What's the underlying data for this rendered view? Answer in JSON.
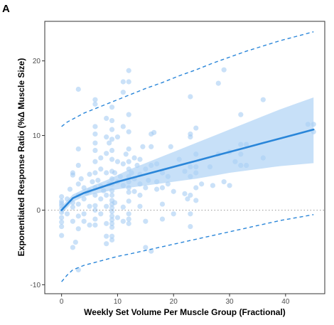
{
  "panel_label": "A",
  "colors": {
    "points": "#9ec9f2",
    "fit_line": "#2a86d9",
    "ci_band": "#a9cff5",
    "prediction_interval": "#2a86d9",
    "zero_line": "#9a9a9a",
    "panel_border": "#333333"
  },
  "chart_data": {
    "type": "scatter",
    "title": "",
    "xlabel": "Weekly Set Volume Per Muscle Group (Fractional)",
    "ylabel": "Exponentiated Response Ratio (%Δ Muscle Size)",
    "xlim": [
      -3,
      47
    ],
    "ylim": [
      -11.2,
      25.3
    ],
    "x_ticks": [
      0,
      10,
      20,
      30,
      40
    ],
    "y_ticks": [
      -10,
      0,
      10,
      20
    ],
    "grid": false,
    "reference_line": {
      "y": 0,
      "style": "dotted"
    },
    "fit": {
      "x": [
        0,
        2,
        4,
        6,
        8,
        10,
        12,
        15,
        18,
        21,
        24,
        27,
        30,
        33,
        36,
        39,
        42,
        45
      ],
      "y": [
        0,
        1.6,
        2.3,
        2.8,
        3.3,
        3.8,
        4.2,
        4.8,
        5.4,
        6.0,
        6.6,
        7.2,
        7.8,
        8.4,
        9.0,
        9.6,
        10.2,
        10.8
      ],
      "lower": [
        -0.5,
        1.1,
        1.8,
        2.2,
        2.5,
        2.8,
        3.0,
        3.3,
        3.6,
        3.9,
        4.2,
        4.6,
        5.0,
        5.3,
        5.6,
        5.9,
        6.1,
        6.3
      ],
      "upper": [
        0.5,
        2.1,
        2.8,
        3.4,
        4.0,
        4.7,
        5.4,
        6.3,
        7.2,
        8.1,
        9.0,
        9.9,
        10.8,
        11.7,
        12.6,
        13.5,
        14.3,
        15.1
      ]
    },
    "prediction_interval": {
      "x": [
        0,
        1,
        2,
        4,
        6,
        8,
        10,
        12,
        15,
        18,
        21,
        24,
        27,
        30,
        33,
        36,
        39,
        42,
        45
      ],
      "lower": [
        -9.6,
        -8.7,
        -8.0,
        -7.4,
        -7.0,
        -6.6,
        -6.2,
        -5.9,
        -5.4,
        -4.9,
        -4.4,
        -3.9,
        -3.4,
        -2.9,
        -2.4,
        -1.9,
        -1.4,
        -1.0,
        -0.6
      ],
      "upper": [
        11.2,
        11.8,
        12.2,
        13.0,
        13.6,
        14.2,
        14.8,
        15.4,
        16.3,
        17.1,
        18.0,
        18.8,
        19.7,
        20.5,
        21.3,
        22.0,
        22.7,
        23.3,
        23.9
      ]
    },
    "series": [
      {
        "points": [
          {
            "x": 0,
            "y": 1.8
          },
          {
            "x": 0,
            "y": 1.2
          },
          {
            "x": 0,
            "y": 0.6
          },
          {
            "x": 0,
            "y": 0.2
          },
          {
            "x": 0,
            "y": -0.3
          },
          {
            "x": 0,
            "y": -1.0
          },
          {
            "x": 0,
            "y": -1.6
          },
          {
            "x": 0,
            "y": -2.2
          },
          {
            "x": 0,
            "y": -3.4
          },
          {
            "x": 0,
            "y": 0.9
          },
          {
            "x": 1,
            "y": -0.5
          },
          {
            "x": 1,
            "y": 1.5
          },
          {
            "x": 1.5,
            "y": 2.8
          },
          {
            "x": 2,
            "y": 4.7
          },
          {
            "x": 2,
            "y": 5.0
          },
          {
            "x": 2,
            "y": 1.0
          },
          {
            "x": 2,
            "y": 0.4
          },
          {
            "x": 2,
            "y": -1.5
          },
          {
            "x": 2,
            "y": -5.0
          },
          {
            "x": 2.5,
            "y": -4.3
          },
          {
            "x": 3,
            "y": 16.2
          },
          {
            "x": 3,
            "y": 8.2
          },
          {
            "x": 3,
            "y": 6.0
          },
          {
            "x": 3,
            "y": 3.5
          },
          {
            "x": 3,
            "y": 2.0
          },
          {
            "x": 3,
            "y": 0.8
          },
          {
            "x": 3,
            "y": -0.8
          },
          {
            "x": 3,
            "y": -2.5
          },
          {
            "x": 3,
            "y": -8.0
          },
          {
            "x": 3.5,
            "y": 4.2
          },
          {
            "x": 4,
            "y": 3.0
          },
          {
            "x": 4,
            "y": 1.5
          },
          {
            "x": 4,
            "y": -0.5
          },
          {
            "x": 4,
            "y": -1.5
          },
          {
            "x": 4.5,
            "y": 2.3
          },
          {
            "x": 5,
            "y": 4.8
          },
          {
            "x": 5,
            "y": 2.6
          },
          {
            "x": 5,
            "y": 0.5
          },
          {
            "x": 5,
            "y": -2.0
          },
          {
            "x": 5.5,
            "y": 3.8
          },
          {
            "x": 6,
            "y": 14.8
          },
          {
            "x": 6,
            "y": 14.2
          },
          {
            "x": 6,
            "y": 11.2
          },
          {
            "x": 6,
            "y": 10.2
          },
          {
            "x": 6,
            "y": 9.0
          },
          {
            "x": 6,
            "y": 8.0
          },
          {
            "x": 6,
            "y": 6.5
          },
          {
            "x": 6,
            "y": 5.0
          },
          {
            "x": 6,
            "y": 3.0
          },
          {
            "x": 6,
            "y": 2.0
          },
          {
            "x": 6,
            "y": 0.6
          },
          {
            "x": 6,
            "y": 0.0
          },
          {
            "x": 6,
            "y": -1.2
          },
          {
            "x": 6,
            "y": -2.0
          },
          {
            "x": 6.5,
            "y": 4.0
          },
          {
            "x": 7,
            "y": 7.0
          },
          {
            "x": 7,
            "y": 5.5
          },
          {
            "x": 7,
            "y": 3.2
          },
          {
            "x": 7,
            "y": 1.5
          },
          {
            "x": 7,
            "y": -0.5
          },
          {
            "x": 7.5,
            "y": 2.6
          },
          {
            "x": 8,
            "y": 12.3
          },
          {
            "x": 8,
            "y": 9.8
          },
          {
            "x": 8,
            "y": 7.6
          },
          {
            "x": 8,
            "y": 5.0
          },
          {
            "x": 8,
            "y": 2.0
          },
          {
            "x": 8,
            "y": 0.5
          },
          {
            "x": 8,
            "y": -1.8
          },
          {
            "x": 8,
            "y": -3.5
          },
          {
            "x": 8,
            "y": -4.5
          },
          {
            "x": 8.5,
            "y": 9.0
          },
          {
            "x": 8.5,
            "y": 3.5
          },
          {
            "x": 9,
            "y": 13.8
          },
          {
            "x": 9,
            "y": 12.0
          },
          {
            "x": 9,
            "y": 10.8
          },
          {
            "x": 9,
            "y": 9.5
          },
          {
            "x": 9,
            "y": 8.0
          },
          {
            "x": 9,
            "y": 6.8
          },
          {
            "x": 9,
            "y": 5.2
          },
          {
            "x": 9,
            "y": 4.2
          },
          {
            "x": 9,
            "y": 3.5
          },
          {
            "x": 9,
            "y": 2.6
          },
          {
            "x": 9,
            "y": 2.0
          },
          {
            "x": 9,
            "y": 1.3
          },
          {
            "x": 9,
            "y": 0.8
          },
          {
            "x": 9,
            "y": 0.3
          },
          {
            "x": 9,
            "y": -0.2
          },
          {
            "x": 9,
            "y": -0.8
          },
          {
            "x": 9,
            "y": -1.3
          },
          {
            "x": 9,
            "y": -1.8
          },
          {
            "x": 9,
            "y": -2.3
          },
          {
            "x": 9,
            "y": -3.5
          },
          {
            "x": 9,
            "y": -4.0
          },
          {
            "x": 9.5,
            "y": 5.0
          },
          {
            "x": 9.5,
            "y": 1.0
          },
          {
            "x": 10,
            "y": 9.8
          },
          {
            "x": 10,
            "y": 6.5
          },
          {
            "x": 10,
            "y": 3.8
          },
          {
            "x": 10,
            "y": -1.0
          },
          {
            "x": 10.5,
            "y": 4.5
          },
          {
            "x": 11,
            "y": 17.2
          },
          {
            "x": 11,
            "y": 15.8
          },
          {
            "x": 11,
            "y": 11.2
          },
          {
            "x": 11,
            "y": 6.2
          },
          {
            "x": 11,
            "y": 3.3
          },
          {
            "x": 11,
            "y": 0.4
          },
          {
            "x": 11,
            "y": -1.5
          },
          {
            "x": 11.5,
            "y": 7.5
          },
          {
            "x": 12,
            "y": 18.7
          },
          {
            "x": 12,
            "y": 17.2
          },
          {
            "x": 12,
            "y": 12.8
          },
          {
            "x": 12,
            "y": 10.5
          },
          {
            "x": 12,
            "y": 8.2
          },
          {
            "x": 12,
            "y": 6.5
          },
          {
            "x": 12,
            "y": 5.5
          },
          {
            "x": 12,
            "y": 4.5
          },
          {
            "x": 12,
            "y": 3.8
          },
          {
            "x": 12,
            "y": 3.0
          },
          {
            "x": 12,
            "y": 2.4
          },
          {
            "x": 12,
            "y": 1.2
          },
          {
            "x": 12,
            "y": -0.5
          },
          {
            "x": 12,
            "y": -1.2
          },
          {
            "x": 12,
            "y": -1.8
          },
          {
            "x": 12.5,
            "y": 5.0
          },
          {
            "x": 13,
            "y": 7.0
          },
          {
            "x": 13,
            "y": 4.2
          },
          {
            "x": 13,
            "y": 2.5
          },
          {
            "x": 13.5,
            "y": 6.0
          },
          {
            "x": 14,
            "y": 6.8
          },
          {
            "x": 14,
            "y": 4.8
          },
          {
            "x": 14,
            "y": 3.5
          },
          {
            "x": 14,
            "y": 2.0
          },
          {
            "x": 14,
            "y": 0.5
          },
          {
            "x": 14.5,
            "y": 8.5
          },
          {
            "x": 15,
            "y": 5.5
          },
          {
            "x": 15,
            "y": 3.0
          },
          {
            "x": 15,
            "y": -1.5
          },
          {
            "x": 15,
            "y": -5.0
          },
          {
            "x": 15.5,
            "y": 4.0
          },
          {
            "x": 16,
            "y": 10.2
          },
          {
            "x": 16,
            "y": 8.5
          },
          {
            "x": 16,
            "y": 6.0
          },
          {
            "x": 16,
            "y": -5.5
          },
          {
            "x": 16.5,
            "y": 10.4
          },
          {
            "x": 17,
            "y": 6.2
          },
          {
            "x": 17,
            "y": 3.8
          },
          {
            "x": 17,
            "y": 2.8
          },
          {
            "x": 18,
            "y": 5.0
          },
          {
            "x": 18,
            "y": 3.0
          },
          {
            "x": 18,
            "y": 0.8
          },
          {
            "x": 18,
            "y": -1.2
          },
          {
            "x": 19,
            "y": 4.5
          },
          {
            "x": 19,
            "y": 3.5
          },
          {
            "x": 19.5,
            "y": 8.5
          },
          {
            "x": 20,
            "y": 2.5
          },
          {
            "x": 20,
            "y": -0.5
          },
          {
            "x": 21,
            "y": 6.8
          },
          {
            "x": 22,
            "y": 5.2
          },
          {
            "x": 22,
            "y": 2.2
          },
          {
            "x": 22.5,
            "y": 1.5
          },
          {
            "x": 23,
            "y": 15.2
          },
          {
            "x": 23,
            "y": 10.2
          },
          {
            "x": 23,
            "y": 9.8
          },
          {
            "x": 23,
            "y": 5.8
          },
          {
            "x": 23,
            "y": 4.5
          },
          {
            "x": 23,
            "y": 2.0
          },
          {
            "x": 23,
            "y": -0.5
          },
          {
            "x": 23,
            "y": -2.2
          },
          {
            "x": 24,
            "y": 11.0
          },
          {
            "x": 24,
            "y": 7.5
          },
          {
            "x": 24,
            "y": 5.8
          },
          {
            "x": 24,
            "y": 5.0
          },
          {
            "x": 24,
            "y": 3.0
          },
          {
            "x": 24,
            "y": 1.3
          },
          {
            "x": 25,
            "y": 3.5
          },
          {
            "x": 26.5,
            "y": 5.8
          },
          {
            "x": 27,
            "y": 3.3
          },
          {
            "x": 28,
            "y": 17.0
          },
          {
            "x": 28,
            "y": 7.5
          },
          {
            "x": 29,
            "y": 18.8
          },
          {
            "x": 29,
            "y": 3.8
          },
          {
            "x": 30,
            "y": 7.8
          },
          {
            "x": 30,
            "y": 3.3
          },
          {
            "x": 31,
            "y": 6.5
          },
          {
            "x": 32,
            "y": 12.8
          },
          {
            "x": 32,
            "y": 8.8
          },
          {
            "x": 32,
            "y": 7.5
          },
          {
            "x": 32,
            "y": 6.0
          },
          {
            "x": 33,
            "y": 8.8
          },
          {
            "x": 33,
            "y": 6.0
          },
          {
            "x": 36,
            "y": 14.8
          },
          {
            "x": 36,
            "y": 7.0
          },
          {
            "x": 44,
            "y": 11.5
          },
          {
            "x": 45,
            "y": 11.5
          },
          {
            "x": 45,
            "y": 10.5
          }
        ]
      }
    ]
  }
}
